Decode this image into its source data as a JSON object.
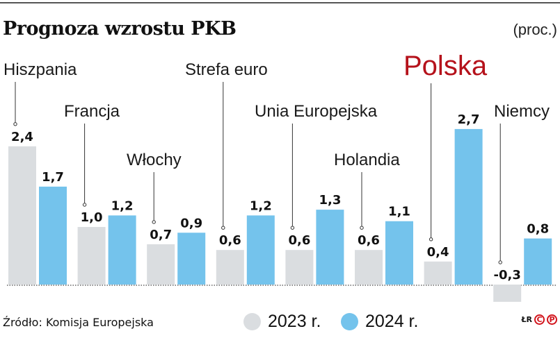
{
  "chart_data": {
    "type": "bar",
    "title": "Prognoza wzrostu PKB",
    "unit": "(proc.)",
    "categories": [
      "Hiszpania",
      "Francja",
      "Włochy",
      "Strefa euro",
      "Unia Europejska",
      "Holandia",
      "Polska",
      "Niemcy"
    ],
    "highlight": "Polska",
    "series": [
      {
        "name": "2023 r.",
        "color": "#dadde0",
        "values": [
          2.4,
          1.0,
          0.7,
          0.6,
          0.6,
          0.6,
          0.4,
          -0.3
        ]
      },
      {
        "name": "2024 r.",
        "color": "#74c3ec",
        "values": [
          1.7,
          1.2,
          0.9,
          1.2,
          1.3,
          1.1,
          2.7,
          0.8
        ]
      }
    ],
    "value_labels": [
      [
        "2,4",
        "1,0",
        "0,7",
        "0,6",
        "0,6",
        "0,6",
        "0,4",
        "-0,3"
      ],
      [
        "1,7",
        "1,2",
        "0,9",
        "1,2",
        "1,3",
        "1,1",
        "2,7",
        "0,8"
      ]
    ],
    "highlight_color": "#b5121b",
    "legend_placement": "bottom",
    "grid": false
  },
  "source": "Źródło: Komisja Europejska",
  "credit": {
    "initials": "ŁR",
    "logo": "CP"
  }
}
